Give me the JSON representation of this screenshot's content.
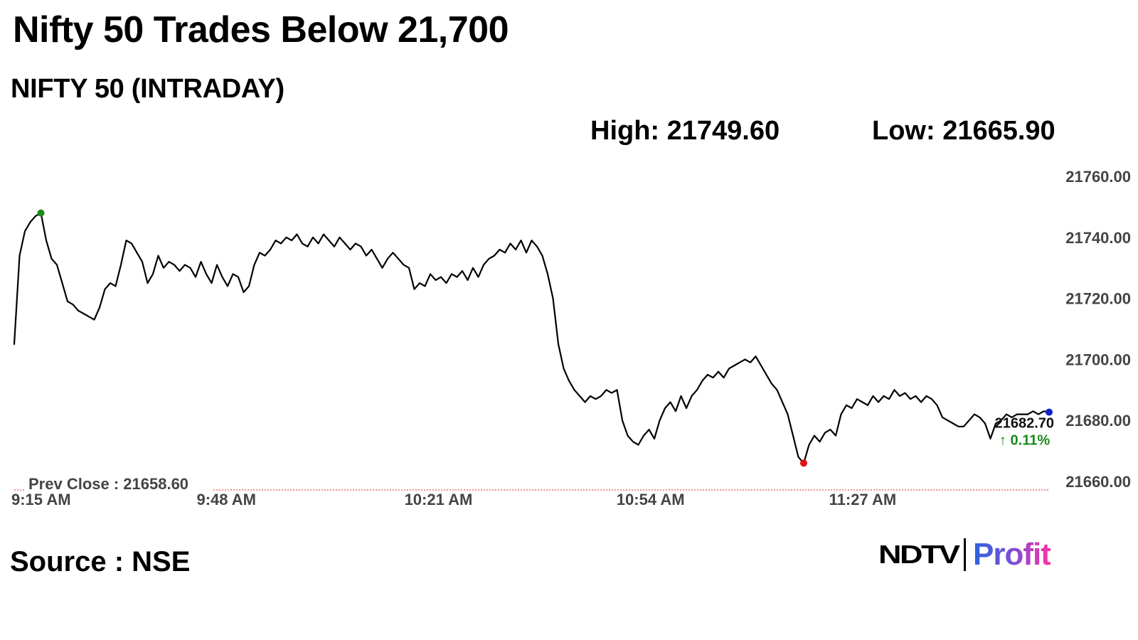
{
  "header": {
    "headline": "Nifty 50 Trades Below 21,700",
    "subtitle": "NIFTY 50 (INTRADAY)",
    "high_label": "High: 21749.60",
    "low_label": "Low: 21665.90"
  },
  "footer": {
    "source": "Source : NSE",
    "logo_ndtv": "NDTV",
    "logo_profit": "Profit"
  },
  "chart_data": {
    "type": "line",
    "title": "",
    "xlabel": "",
    "ylabel": "",
    "x_ticks": [
      "9:15 AM",
      "9:48 AM",
      "10:21 AM",
      "10:54 AM",
      "11:27 AM"
    ],
    "x_range": [
      "9:15",
      "11:56"
    ],
    "ylim": [
      21660,
      21760
    ],
    "y_ticks": [
      "21660.00",
      "21680.00",
      "21700.00",
      "21720.00",
      "21740.00",
      "21760.00"
    ],
    "grid": false,
    "y_axis_position": "right",
    "prev_close_label": "Prev Close : 21658.60",
    "prev_close_value": 21658.6,
    "last_value_label": "21682.70",
    "last_change_label": "↑ 0.11%",
    "high_value": 21749.6,
    "low_value": 21665.9,
    "colors": {
      "line": "#000000",
      "high_marker": "#1a8a1a",
      "low_marker": "#e01010",
      "last_marker": "#1020d0",
      "prev_close_line": "#e05050",
      "change_text": "#1a8a1a",
      "axis_text": "#333333"
    },
    "series": [
      {
        "values": [
          [
            0,
            21705
          ],
          [
            1,
            21734
          ],
          [
            2,
            21742
          ],
          [
            3,
            21745
          ],
          [
            4,
            21747
          ],
          [
            5,
            21748
          ],
          [
            6,
            21739
          ],
          [
            7,
            21733
          ],
          [
            8,
            21731
          ],
          [
            9,
            21725
          ],
          [
            10,
            21719
          ],
          [
            11,
            21718
          ],
          [
            12,
            21716
          ],
          [
            13,
            21715
          ],
          [
            14,
            21714
          ],
          [
            15,
            21713
          ],
          [
            16,
            21717
          ],
          [
            17,
            21723
          ],
          [
            18,
            21725
          ],
          [
            19,
            21724
          ],
          [
            20,
            21731
          ],
          [
            21,
            21739
          ],
          [
            22,
            21738
          ],
          [
            23,
            21735
          ],
          [
            24,
            21732
          ],
          [
            25,
            21725
          ],
          [
            26,
            21728
          ],
          [
            27,
            21734
          ],
          [
            28,
            21730
          ],
          [
            29,
            21732
          ],
          [
            30,
            21731
          ],
          [
            31,
            21729
          ],
          [
            32,
            21731
          ],
          [
            33,
            21730
          ],
          [
            34,
            21727
          ],
          [
            35,
            21732
          ],
          [
            36,
            21728
          ],
          [
            37,
            21725
          ],
          [
            38,
            21731
          ],
          [
            39,
            21727
          ],
          [
            40,
            21724
          ],
          [
            41,
            21728
          ],
          [
            42,
            21727
          ],
          [
            43,
            21722
          ],
          [
            44,
            21724
          ],
          [
            45,
            21731
          ],
          [
            46,
            21735
          ],
          [
            47,
            21734
          ],
          [
            48,
            21736
          ],
          [
            49,
            21739
          ],
          [
            50,
            21738
          ],
          [
            51,
            21740
          ],
          [
            52,
            21739
          ],
          [
            53,
            21741
          ],
          [
            54,
            21738
          ],
          [
            55,
            21737
          ],
          [
            56,
            21740
          ],
          [
            57,
            21738
          ],
          [
            58,
            21741
          ],
          [
            59,
            21739
          ],
          [
            60,
            21737
          ],
          [
            61,
            21740
          ],
          [
            62,
            21738
          ],
          [
            63,
            21736
          ],
          [
            64,
            21738
          ],
          [
            65,
            21737
          ],
          [
            66,
            21734
          ],
          [
            67,
            21736
          ],
          [
            68,
            21733
          ],
          [
            69,
            21730
          ],
          [
            70,
            21733
          ],
          [
            71,
            21735
          ],
          [
            72,
            21733
          ],
          [
            73,
            21731
          ],
          [
            74,
            21730
          ],
          [
            75,
            21723
          ],
          [
            76,
            21725
          ],
          [
            77,
            21724
          ],
          [
            78,
            21728
          ],
          [
            79,
            21726
          ],
          [
            80,
            21727
          ],
          [
            81,
            21725
          ],
          [
            82,
            21728
          ],
          [
            83,
            21727
          ],
          [
            84,
            21729
          ],
          [
            85,
            21726
          ],
          [
            86,
            21730
          ],
          [
            87,
            21727
          ],
          [
            88,
            21731
          ],
          [
            89,
            21733
          ],
          [
            90,
            21734
          ],
          [
            91,
            21736
          ],
          [
            92,
            21735
          ],
          [
            93,
            21738
          ],
          [
            94,
            21736
          ],
          [
            95,
            21739
          ],
          [
            96,
            21735
          ],
          [
            97,
            21739
          ],
          [
            98,
            21737
          ],
          [
            99,
            21734
          ],
          [
            100,
            21728
          ],
          [
            101,
            21720
          ],
          [
            102,
            21705
          ],
          [
            103,
            21697
          ],
          [
            104,
            21693
          ],
          [
            105,
            21690
          ],
          [
            106,
            21688
          ],
          [
            107,
            21686
          ],
          [
            108,
            21688
          ],
          [
            109,
            21687
          ],
          [
            110,
            21688
          ],
          [
            111,
            21690
          ],
          [
            112,
            21689
          ],
          [
            113,
            21690
          ],
          [
            114,
            21680
          ],
          [
            115,
            21675
          ],
          [
            116,
            21673
          ],
          [
            117,
            21672
          ],
          [
            118,
            21675
          ],
          [
            119,
            21677
          ],
          [
            120,
            21674
          ],
          [
            121,
            21680
          ],
          [
            122,
            21684
          ],
          [
            123,
            21686
          ],
          [
            124,
            21683
          ],
          [
            125,
            21688
          ],
          [
            126,
            21684
          ],
          [
            127,
            21688
          ],
          [
            128,
            21690
          ],
          [
            129,
            21693
          ],
          [
            130,
            21695
          ],
          [
            131,
            21694
          ],
          [
            132,
            21696
          ],
          [
            133,
            21694
          ],
          [
            134,
            21697
          ],
          [
            135,
            21698
          ],
          [
            136,
            21699
          ],
          [
            137,
            21700
          ],
          [
            138,
            21699
          ],
          [
            139,
            21701
          ],
          [
            140,
            21698
          ],
          [
            141,
            21695
          ],
          [
            142,
            21692
          ],
          [
            143,
            21690
          ],
          [
            144,
            21686
          ],
          [
            145,
            21682
          ],
          [
            146,
            21675
          ],
          [
            147,
            21668
          ],
          [
            148,
            21666
          ],
          [
            149,
            21672
          ],
          [
            150,
            21675
          ],
          [
            151,
            21673
          ],
          [
            152,
            21676
          ],
          [
            153,
            21677
          ],
          [
            154,
            21675
          ],
          [
            155,
            21682
          ],
          [
            156,
            21685
          ],
          [
            157,
            21684
          ],
          [
            158,
            21687
          ],
          [
            159,
            21686
          ],
          [
            160,
            21685
          ],
          [
            161,
            21688
          ],
          [
            162,
            21686
          ],
          [
            163,
            21688
          ],
          [
            164,
            21687
          ],
          [
            165,
            21690
          ],
          [
            166,
            21688
          ],
          [
            167,
            21689
          ],
          [
            168,
            21687
          ],
          [
            169,
            21688
          ],
          [
            170,
            21686
          ],
          [
            171,
            21688
          ],
          [
            172,
            21687
          ],
          [
            173,
            21685
          ],
          [
            174,
            21681
          ],
          [
            175,
            21680
          ],
          [
            176,
            21679
          ],
          [
            177,
            21678
          ],
          [
            178,
            21678
          ],
          [
            179,
            21680
          ],
          [
            180,
            21682
          ],
          [
            181,
            21681
          ],
          [
            182,
            21679
          ],
          [
            183,
            21674
          ],
          [
            184,
            21679
          ],
          [
            185,
            21680
          ],
          [
            186,
            21682
          ],
          [
            187,
            21681
          ],
          [
            188,
            21682
          ],
          [
            189,
            21682
          ],
          [
            190,
            21682
          ],
          [
            191,
            21683
          ],
          [
            192,
            21682
          ],
          [
            193,
            21683
          ],
          [
            194,
            21682.7
          ]
        ]
      }
    ]
  }
}
